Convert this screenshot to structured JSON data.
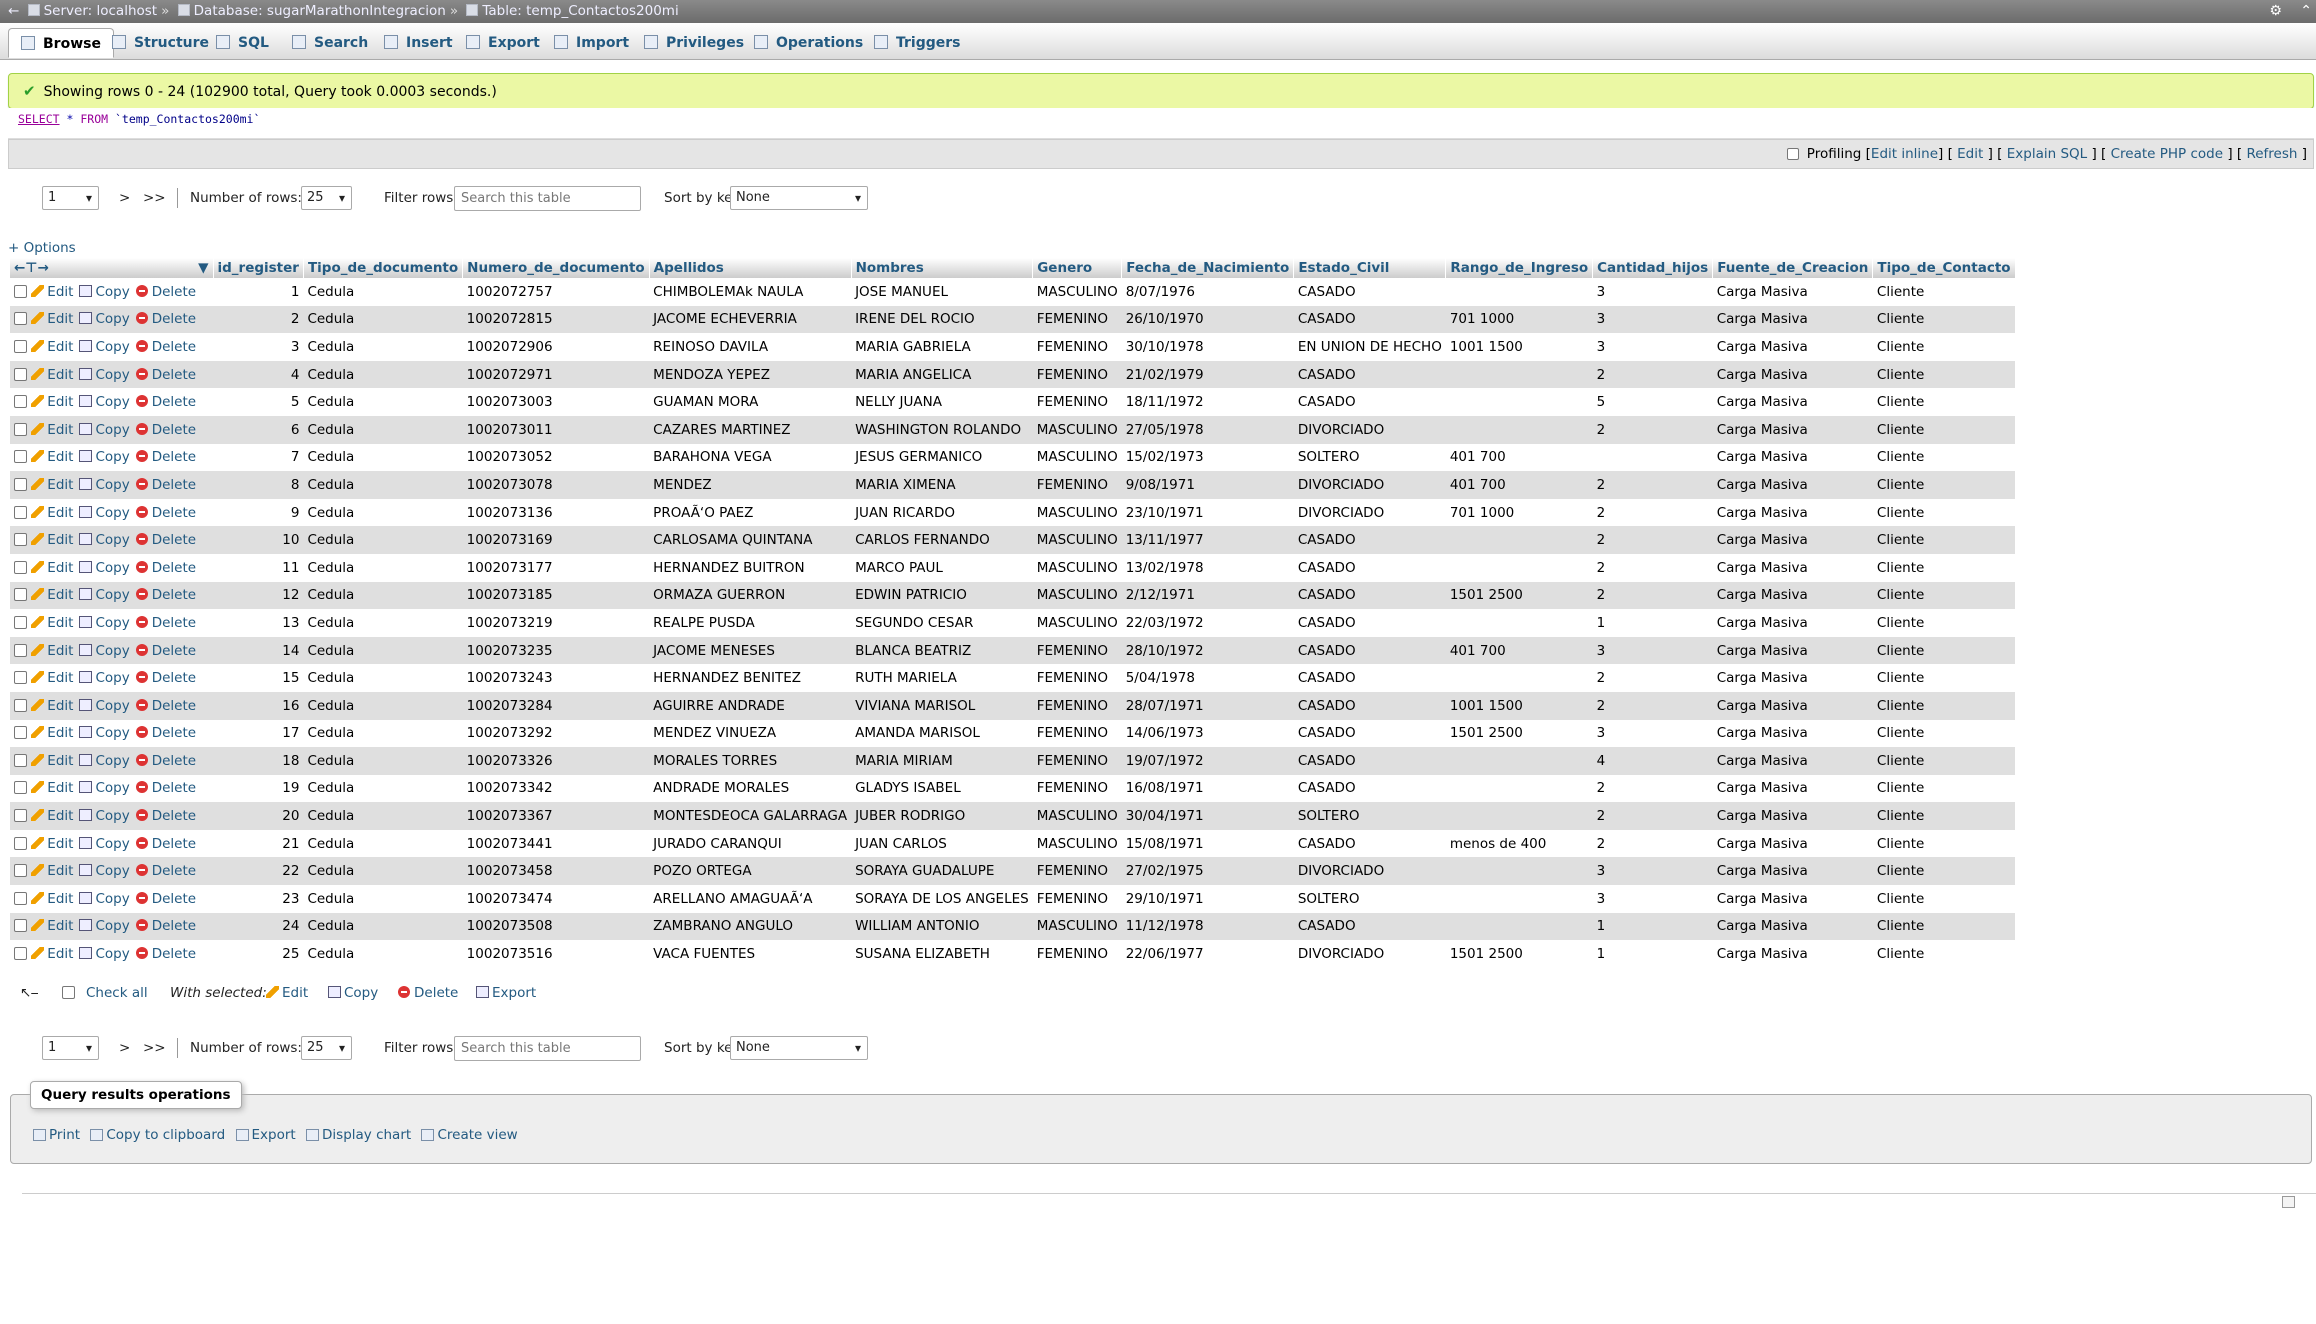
{
  "breadcrumb": {
    "server": "Server: localhost",
    "database": "Database: sugarMarathonIntegracion",
    "table": "Table: temp_Contactos200mi",
    "separator": "»"
  },
  "tabs": [
    {
      "label": "Browse",
      "icon": "browse-icon",
      "active": true
    },
    {
      "label": "Structure",
      "icon": "structure-icon"
    },
    {
      "label": "SQL",
      "icon": "sql-icon"
    },
    {
      "label": "Search",
      "icon": "search-icon"
    },
    {
      "label": "Insert",
      "icon": "insert-icon"
    },
    {
      "label": "Export",
      "icon": "export-icon"
    },
    {
      "label": "Import",
      "icon": "import-icon"
    },
    {
      "label": "Privileges",
      "icon": "privileges-icon"
    },
    {
      "label": "Operations",
      "icon": "operations-icon"
    },
    {
      "label": "Triggers",
      "icon": "triggers-icon"
    }
  ],
  "message": "Showing rows 0 - 24 (102900 total, Query took 0.0003 seconds.)",
  "sql": {
    "keyword": "SELECT",
    "star": "*",
    "from": "FROM",
    "table": "`temp_Contactos200mi`"
  },
  "profiling": {
    "label": "Profiling",
    "edit_inline": "Edit inline",
    "edit": "Edit",
    "explain": "Explain SQL",
    "php": "Create PHP code",
    "refresh": "Refresh"
  },
  "nav": {
    "page": "1",
    "next": ">",
    "last": ">>",
    "rows_label": "Number of rows:",
    "rows_value": "25",
    "filter_label": "Filter rows:",
    "filter_placeholder": "Search this table",
    "sort_label": "Sort by key:",
    "sort_value": "None"
  },
  "options_link": "+ Options",
  "columns": [
    "id_register",
    "Tipo_de_documento",
    "Numero_de_documento",
    "Apellidos",
    "Nombres",
    "Genero",
    "Fecha_de_Nacimiento",
    "Estado_Civil",
    "Rango_de_Ingreso",
    "Cantidad_hijos",
    "Fuente_de_Creacion",
    "Tipo_de_Contacto"
  ],
  "row_actions": {
    "edit": "Edit",
    "copy": "Copy",
    "delete": "Delete"
  },
  "rows": [
    [
      "1",
      "Cedula",
      "1002072757",
      "CHIMBOLEMAk NAULA",
      "JOSE MANUEL",
      "MASCULINO",
      "8/07/1976",
      "CASADO",
      "",
      "3",
      "Carga Masiva",
      "Cliente"
    ],
    [
      "2",
      "Cedula",
      "1002072815",
      "JACOME ECHEVERRIA",
      "IRENE DEL ROCIO",
      "FEMENINO",
      "26/10/1970",
      "CASADO",
      "701 1000",
      "3",
      "Carga Masiva",
      "Cliente"
    ],
    [
      "3",
      "Cedula",
      "1002072906",
      "REINOSO DAVILA",
      "MARIA GABRIELA",
      "FEMENINO",
      "30/10/1978",
      "EN UNION DE HECHO",
      "1001 1500",
      "3",
      "Carga Masiva",
      "Cliente"
    ],
    [
      "4",
      "Cedula",
      "1002072971",
      "MENDOZA YEPEZ",
      "MARIA ANGELICA",
      "FEMENINO",
      "21/02/1979",
      "CASADO",
      "",
      "2",
      "Carga Masiva",
      "Cliente"
    ],
    [
      "5",
      "Cedula",
      "1002073003",
      "GUAMAN MORA",
      "NELLY JUANA",
      "FEMENINO",
      "18/11/1972",
      "CASADO",
      "",
      "5",
      "Carga Masiva",
      "Cliente"
    ],
    [
      "6",
      "Cedula",
      "1002073011",
      "CAZARES MARTINEZ",
      "WASHINGTON ROLANDO",
      "MASCULINO",
      "27/05/1978",
      "DIVORCIADO",
      "",
      "2",
      "Carga Masiva",
      "Cliente"
    ],
    [
      "7",
      "Cedula",
      "1002073052",
      "BARAHONA VEGA",
      "JESUS GERMANICO",
      "MASCULINO",
      "15/02/1973",
      "SOLTERO",
      "401 700",
      "",
      "Carga Masiva",
      "Cliente"
    ],
    [
      "8",
      "Cedula",
      "1002073078",
      "MENDEZ",
      "MARIA XIMENA",
      "FEMENINO",
      "9/08/1971",
      "DIVORCIADO",
      "401 700",
      "2",
      "Carga Masiva",
      "Cliente"
    ],
    [
      "9",
      "Cedula",
      "1002073136",
      "PROAÃ‘O PAEZ",
      "JUAN RICARDO",
      "MASCULINO",
      "23/10/1971",
      "DIVORCIADO",
      "701 1000",
      "2",
      "Carga Masiva",
      "Cliente"
    ],
    [
      "10",
      "Cedula",
      "1002073169",
      "CARLOSAMA QUINTANA",
      "CARLOS FERNANDO",
      "MASCULINO",
      "13/11/1977",
      "CASADO",
      "",
      "2",
      "Carga Masiva",
      "Cliente"
    ],
    [
      "11",
      "Cedula",
      "1002073177",
      "HERNANDEZ BUITRON",
      "MARCO PAUL",
      "MASCULINO",
      "13/02/1978",
      "CASADO",
      "",
      "2",
      "Carga Masiva",
      "Cliente"
    ],
    [
      "12",
      "Cedula",
      "1002073185",
      "ORMAZA GUERRON",
      "EDWIN PATRICIO",
      "MASCULINO",
      "2/12/1971",
      "CASADO",
      "1501 2500",
      "2",
      "Carga Masiva",
      "Cliente"
    ],
    [
      "13",
      "Cedula",
      "1002073219",
      "REALPE PUSDA",
      "SEGUNDO CESAR",
      "MASCULINO",
      "22/03/1972",
      "CASADO",
      "",
      "1",
      "Carga Masiva",
      "Cliente"
    ],
    [
      "14",
      "Cedula",
      "1002073235",
      "JACOME MENESES",
      "BLANCA BEATRIZ",
      "FEMENINO",
      "28/10/1972",
      "CASADO",
      "401 700",
      "3",
      "Carga Masiva",
      "Cliente"
    ],
    [
      "15",
      "Cedula",
      "1002073243",
      "HERNANDEZ BENITEZ",
      "RUTH MARIELA",
      "FEMENINO",
      "5/04/1978",
      "CASADO",
      "",
      "2",
      "Carga Masiva",
      "Cliente"
    ],
    [
      "16",
      "Cedula",
      "1002073284",
      "AGUIRRE ANDRADE",
      "VIVIANA MARISOL",
      "FEMENINO",
      "28/07/1971",
      "CASADO",
      "1001 1500",
      "2",
      "Carga Masiva",
      "Cliente"
    ],
    [
      "17",
      "Cedula",
      "1002073292",
      "MENDEZ VINUEZA",
      "AMANDA MARISOL",
      "FEMENINO",
      "14/06/1973",
      "CASADO",
      "1501 2500",
      "3",
      "Carga Masiva",
      "Cliente"
    ],
    [
      "18",
      "Cedula",
      "1002073326",
      "MORALES TORRES",
      "MARIA MIRIAM",
      "FEMENINO",
      "19/07/1972",
      "CASADO",
      "",
      "4",
      "Carga Masiva",
      "Cliente"
    ],
    [
      "19",
      "Cedula",
      "1002073342",
      "ANDRADE MORALES",
      "GLADYS ISABEL",
      "FEMENINO",
      "16/08/1971",
      "CASADO",
      "",
      "2",
      "Carga Masiva",
      "Cliente"
    ],
    [
      "20",
      "Cedula",
      "1002073367",
      "MONTESDEOCA GALARRAGA",
      "JUBER RODRIGO",
      "MASCULINO",
      "30/04/1971",
      "SOLTERO",
      "",
      "2",
      "Carga Masiva",
      "Cliente"
    ],
    [
      "21",
      "Cedula",
      "1002073441",
      "JURADO CARANQUI",
      "JUAN CARLOS",
      "MASCULINO",
      "15/08/1971",
      "CASADO",
      "menos de 400",
      "2",
      "Carga Masiva",
      "Cliente"
    ],
    [
      "22",
      "Cedula",
      "1002073458",
      "POZO ORTEGA",
      "SORAYA GUADALUPE",
      "FEMENINO",
      "27/02/1975",
      "DIVORCIADO",
      "",
      "3",
      "Carga Masiva",
      "Cliente"
    ],
    [
      "23",
      "Cedula",
      "1002073474",
      "ARELLANO AMAGUAÃ‘A",
      "SORAYA DE LOS ANGELES",
      "FEMENINO",
      "29/10/1971",
      "SOLTERO",
      "",
      "3",
      "Carga Masiva",
      "Cliente"
    ],
    [
      "24",
      "Cedula",
      "1002073508",
      "ZAMBRANO ANGULO",
      "WILLIAM ANTONIO",
      "MASCULINO",
      "11/12/1978",
      "CASADO",
      "",
      "1",
      "Carga Masiva",
      "Cliente"
    ],
    [
      "25",
      "Cedula",
      "1002073516",
      "VACA FUENTES",
      "SUSANA ELIZABETH",
      "FEMENINO",
      "22/06/1977",
      "DIVORCIADO",
      "1501 2500",
      "1",
      "Carga Masiva",
      "Cliente"
    ]
  ],
  "bulk": {
    "check_all": "Check all",
    "with_selected": "With selected:",
    "edit": "Edit",
    "copy": "Copy",
    "delete": "Delete",
    "export": "Export"
  },
  "qro": {
    "legend": "Query results operations",
    "print": "Print",
    "clipboard": "Copy to clipboard",
    "export": "Export",
    "chart": "Display chart",
    "view": "Create view"
  }
}
